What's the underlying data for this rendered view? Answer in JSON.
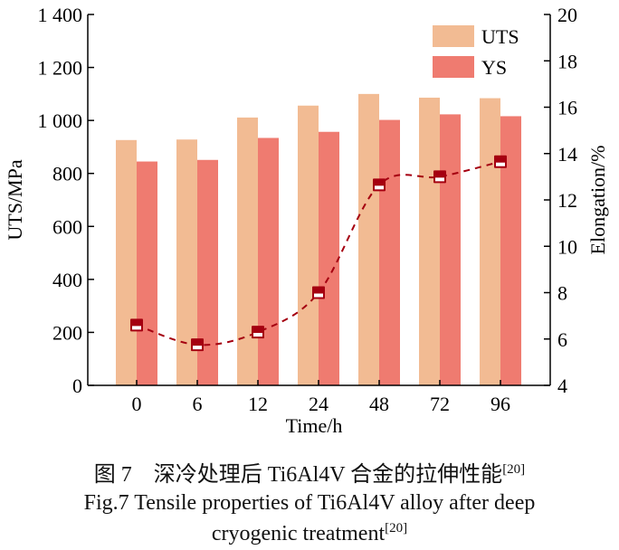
{
  "chart_data": {
    "type": "bar",
    "categories": [
      "0",
      "6",
      "12",
      "24",
      "48",
      "72",
      "96"
    ],
    "xlabel": "Time/h",
    "ylabel": "UTS/MPa",
    "y2label": "Elongation/%",
    "ylim": [
      0,
      1400
    ],
    "y2lim": [
      4,
      20
    ],
    "yticks": [
      "0",
      "200",
      "400",
      "600",
      "800",
      "1 000",
      "1 200",
      "1 400"
    ],
    "y2ticks": [
      "4",
      "6",
      "8",
      "10",
      "12",
      "14",
      "16",
      "18",
      "20"
    ],
    "grid": false,
    "legend": "top-right",
    "series": [
      {
        "name": "UTS",
        "type": "bar",
        "axis": "left",
        "color": "#f2bb93",
        "values": [
          926,
          928,
          1011,
          1056,
          1100,
          1086,
          1084
        ]
      },
      {
        "name": "YS",
        "type": "bar",
        "axis": "left",
        "color": "#ef7b70",
        "values": [
          845,
          851,
          934,
          957,
          1002,
          1023,
          1016
        ]
      },
      {
        "type": "line",
        "axis": "right",
        "color": "#a50010",
        "style": "dashed",
        "marker": "square",
        "values": [
          6.6,
          5.75,
          6.3,
          8.0,
          12.65,
          13.0,
          13.65
        ]
      }
    ]
  },
  "caption": {
    "cn": "图 7　深冷处理后 Ti6Al4V 合金的拉伸性能",
    "cn_ref": "[20]",
    "en_line1": "Fig.7 Tensile properties of Ti6Al4V alloy after deep",
    "en_line2": "cryogenic treatment",
    "en_ref": "[20]"
  }
}
